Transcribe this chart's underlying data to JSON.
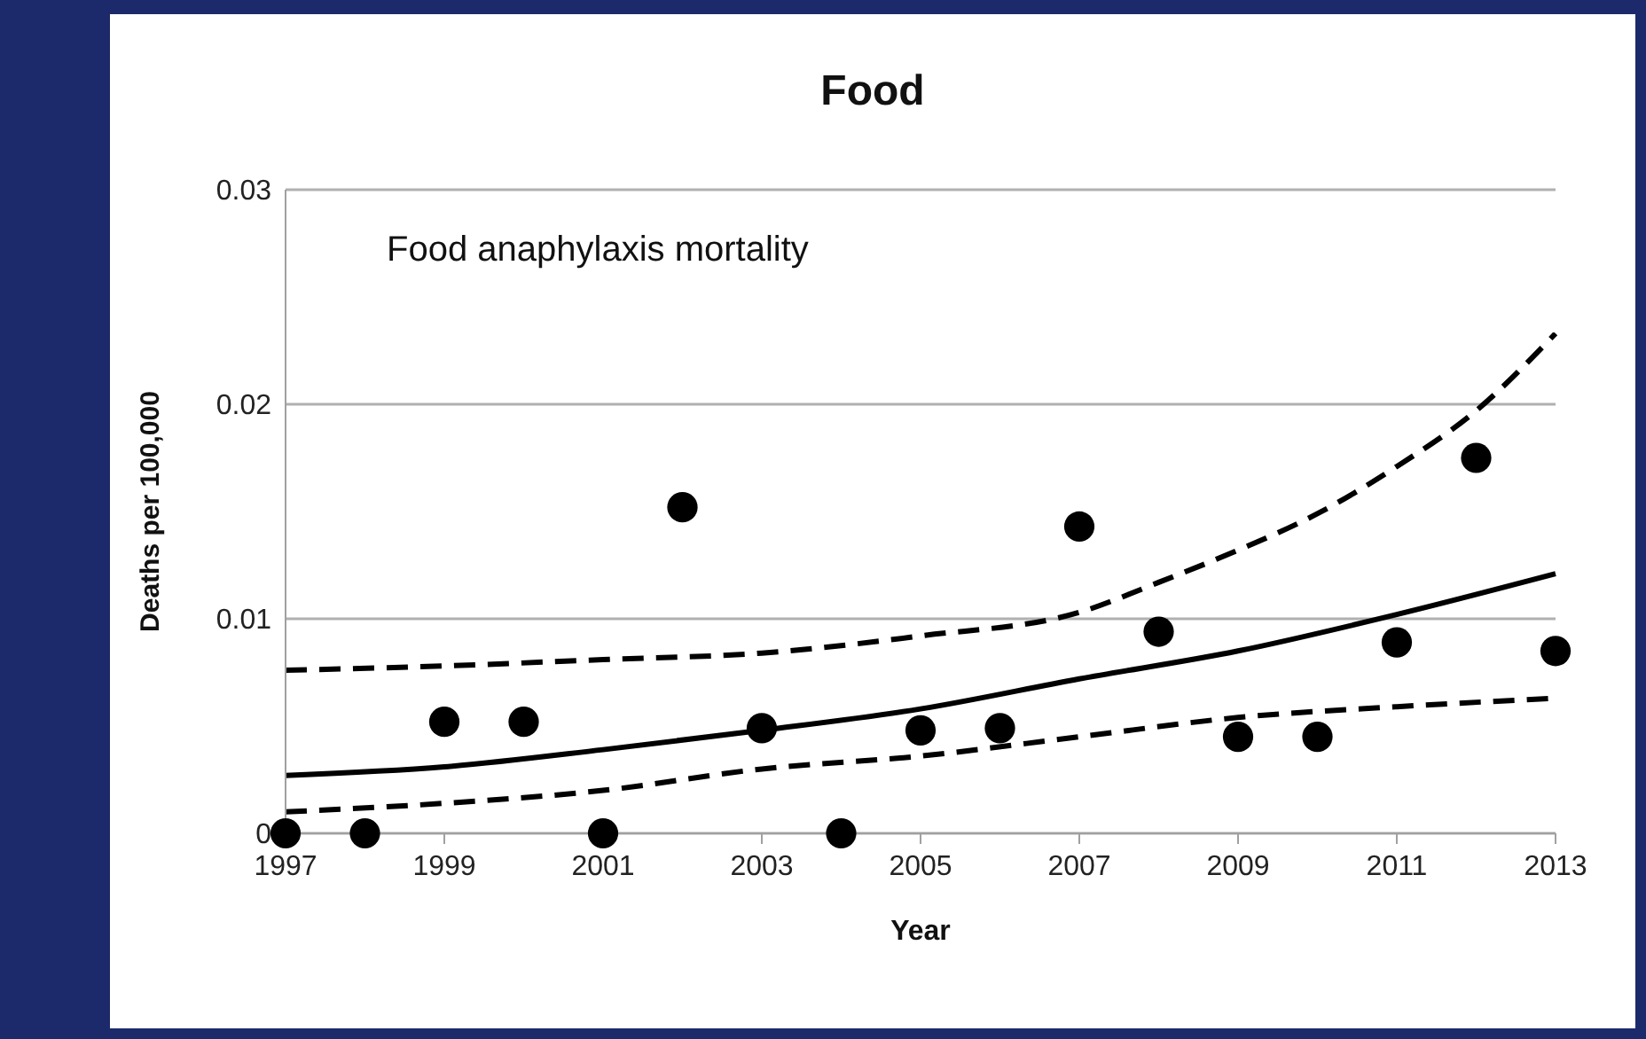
{
  "chart_data": {
    "type": "scatter",
    "title": "Food",
    "xlabel": "Year",
    "ylabel": "Deaths per 100,000",
    "annotations": [
      "Food anaphylaxis mortality"
    ],
    "x": [
      1997,
      1998,
      1999,
      2000,
      2001,
      2002,
      2003,
      2004,
      2005,
      2006,
      2007,
      2008,
      2009,
      2010,
      2011,
      2012,
      2013
    ],
    "series": [
      {
        "color": "#000000",
        "marker": "circle",
        "values": [
          0,
          0,
          0.0052,
          0.0052,
          0,
          0.0152,
          0.0049,
          0,
          0.0048,
          0.0049,
          0.0143,
          0.0094,
          0.0045,
          0.0045,
          0.0089,
          0.0175,
          0.0085
        ]
      },
      {
        "type": "line",
        "color": "#000000",
        "line_style": "solid",
        "x": [
          1997,
          1999,
          2001,
          2003,
          2005,
          2007,
          2009,
          2011,
          2013
        ],
        "values": [
          0.0027,
          0.0031,
          0.0039,
          0.0048,
          0.0058,
          0.0072,
          0.0085,
          0.0102,
          0.0121
        ]
      },
      {
        "type": "line",
        "color": "#000000",
        "line_style": "dashed",
        "x": [
          1997,
          1999,
          2001,
          2003,
          2005,
          2007,
          2008,
          2009,
          2010,
          2011,
          2012,
          2013
        ],
        "values": [
          0.0076,
          0.0078,
          0.0081,
          0.0084,
          0.0092,
          0.0103,
          0.0117,
          0.0132,
          0.0149,
          0.0171,
          0.0197,
          0.0233
        ]
      },
      {
        "type": "line",
        "color": "#000000",
        "line_style": "dashed",
        "x": [
          1997,
          1999,
          2001,
          2003,
          2005,
          2007,
          2009,
          2011,
          2013
        ],
        "values": [
          0.001,
          0.0014,
          0.002,
          0.003,
          0.0036,
          0.0045,
          0.0054,
          0.0059,
          0.0063
        ]
      }
    ],
    "xlim": [
      1997,
      2013
    ],
    "xticks": [
      1997,
      1999,
      2001,
      2003,
      2005,
      2007,
      2009,
      2011,
      2013
    ],
    "ylim": [
      0,
      0.03
    ],
    "yticks": [
      0,
      0.01,
      0.02,
      0.03
    ],
    "grid": "y"
  }
}
